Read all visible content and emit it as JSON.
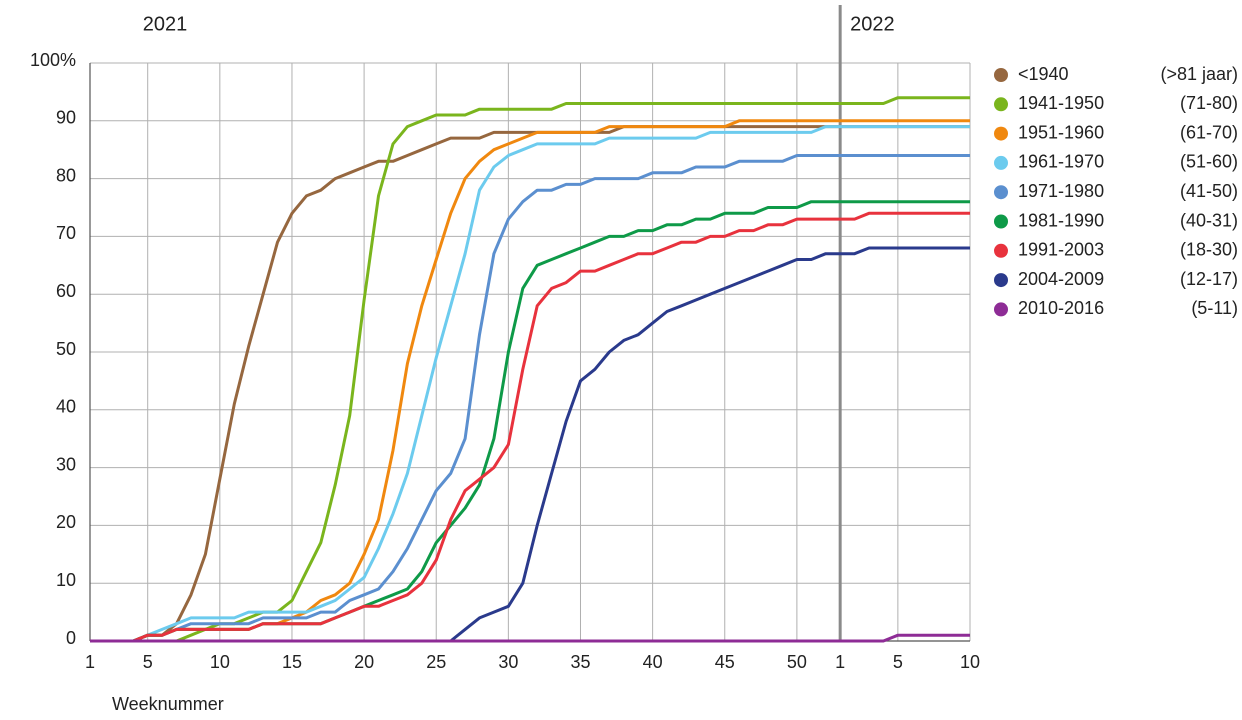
{
  "chart_data": {
    "type": "line",
    "xlabel": "Weeknummer",
    "year_labels": [
      "2021",
      "2022"
    ],
    "year_break": 53,
    "x": [
      1,
      2,
      3,
      4,
      5,
      6,
      7,
      8,
      9,
      10,
      11,
      12,
      13,
      14,
      15,
      16,
      17,
      18,
      19,
      20,
      21,
      22,
      23,
      24,
      25,
      26,
      27,
      28,
      29,
      30,
      31,
      32,
      33,
      34,
      35,
      36,
      37,
      38,
      39,
      40,
      41,
      42,
      43,
      44,
      45,
      46,
      47,
      48,
      49,
      50,
      51,
      52,
      53,
      54,
      55,
      56,
      57,
      58,
      59,
      60,
      61,
      62
    ],
    "xlim": [
      1,
      62
    ],
    "xticks": [
      1,
      5,
      10,
      15,
      20,
      25,
      30,
      35,
      40,
      45,
      50,
      {
        "value": 53,
        "label": "1"
      },
      {
        "value": 57,
        "label": "5"
      },
      {
        "value": 62,
        "label": "10"
      }
    ],
    "ylim": [
      0,
      100
    ],
    "yticks": [
      0,
      10,
      20,
      30,
      40,
      50,
      60,
      70,
      80,
      90,
      {
        "value": 100,
        "label": "100%"
      }
    ],
    "grid": true,
    "legend": "right",
    "series": [
      {
        "name": "<1940",
        "age": "(>81 jaar)",
        "color": "#96673f",
        "values": [
          0,
          0,
          0,
          0,
          1,
          1,
          3,
          8,
          15,
          28,
          41,
          51,
          60,
          69,
          74,
          77,
          78,
          80,
          81,
          82,
          83,
          83,
          84,
          85,
          86,
          87,
          87,
          87,
          88,
          88,
          88,
          88,
          88,
          88,
          88,
          88,
          88,
          89,
          89,
          89,
          89,
          89,
          89,
          89,
          89,
          89,
          89,
          89,
          89,
          89,
          89,
          89,
          89,
          89,
          89,
          89,
          89,
          89,
          89,
          89,
          89,
          89
        ]
      },
      {
        "name": "1941-1950",
        "age": "(71-80)",
        "color": "#7ab51d",
        "values": [
          0,
          0,
          0,
          0,
          0,
          0,
          0,
          1,
          2,
          3,
          3,
          4,
          5,
          5,
          7,
          12,
          17,
          27,
          39,
          59,
          77,
          86,
          89,
          90,
          91,
          91,
          91,
          92,
          92,
          92,
          92,
          92,
          92,
          93,
          93,
          93,
          93,
          93,
          93,
          93,
          93,
          93,
          93,
          93,
          93,
          93,
          93,
          93,
          93,
          93,
          93,
          93,
          93,
          93,
          93,
          93,
          94,
          94,
          94,
          94,
          94,
          94
        ]
      },
      {
        "name": "1951-1960",
        "age": "(61-70)",
        "color": "#f0880f",
        "values": [
          0,
          0,
          0,
          0,
          1,
          1,
          2,
          2,
          2,
          2,
          2,
          2,
          3,
          3,
          4,
          5,
          7,
          8,
          10,
          15,
          21,
          33,
          48,
          58,
          66,
          74,
          80,
          83,
          85,
          86,
          87,
          88,
          88,
          88,
          88,
          88,
          89,
          89,
          89,
          89,
          89,
          89,
          89,
          89,
          89,
          90,
          90,
          90,
          90,
          90,
          90,
          90,
          90,
          90,
          90,
          90,
          90,
          90,
          90,
          90,
          90,
          90
        ]
      },
      {
        "name": "1961-1970",
        "age": "(51-60)",
        "color": "#6ccbee",
        "values": [
          0,
          0,
          0,
          0,
          1,
          2,
          3,
          4,
          4,
          4,
          4,
          5,
          5,
          5,
          5,
          5,
          6,
          7,
          9,
          11,
          16,
          22,
          29,
          39,
          49,
          58,
          67,
          78,
          82,
          84,
          85,
          86,
          86,
          86,
          86,
          86,
          87,
          87,
          87,
          87,
          87,
          87,
          87,
          88,
          88,
          88,
          88,
          88,
          88,
          88,
          88,
          89,
          89,
          89,
          89,
          89,
          89,
          89,
          89,
          89,
          89,
          89
        ]
      },
      {
        "name": "1971-1980",
        "age": "(41-50)",
        "color": "#5b8fcf",
        "values": [
          0,
          0,
          0,
          0,
          1,
          1,
          2,
          3,
          3,
          3,
          3,
          3,
          4,
          4,
          4,
          4,
          5,
          5,
          7,
          8,
          9,
          12,
          16,
          21,
          26,
          29,
          35,
          53,
          67,
          73,
          76,
          78,
          78,
          79,
          79,
          80,
          80,
          80,
          80,
          81,
          81,
          81,
          82,
          82,
          82,
          83,
          83,
          83,
          83,
          84,
          84,
          84,
          84,
          84,
          84,
          84,
          84,
          84,
          84,
          84,
          84,
          84
        ]
      },
      {
        "name": "1981-1990",
        "age": "(40-31)",
        "color": "#0e9a48",
        "values": [
          0,
          0,
          0,
          0,
          1,
          1,
          2,
          2,
          2,
          2,
          2,
          2,
          3,
          3,
          3,
          3,
          3,
          4,
          5,
          6,
          7,
          8,
          9,
          12,
          17,
          20,
          23,
          27,
          35,
          50,
          61,
          65,
          66,
          67,
          68,
          69,
          70,
          70,
          71,
          71,
          72,
          72,
          73,
          73,
          74,
          74,
          74,
          75,
          75,
          75,
          76,
          76,
          76,
          76,
          76,
          76,
          76,
          76,
          76,
          76,
          76,
          76
        ]
      },
      {
        "name": "1991-2003",
        "age": "(18-30)",
        "color": "#e8323d",
        "values": [
          0,
          0,
          0,
          0,
          1,
          1,
          2,
          2,
          2,
          2,
          2,
          2,
          3,
          3,
          3,
          3,
          3,
          4,
          5,
          6,
          6,
          7,
          8,
          10,
          14,
          21,
          26,
          28,
          30,
          34,
          47,
          58,
          61,
          62,
          64,
          64,
          65,
          66,
          67,
          67,
          68,
          69,
          69,
          70,
          70,
          71,
          71,
          72,
          72,
          73,
          73,
          73,
          73,
          73,
          74,
          74,
          74,
          74,
          74,
          74,
          74,
          74
        ]
      },
      {
        "name": "2004-2009",
        "age": "(12-17)",
        "color": "#2a3a8c",
        "values": [
          0,
          0,
          0,
          0,
          0,
          0,
          0,
          0,
          0,
          0,
          0,
          0,
          0,
          0,
          0,
          0,
          0,
          0,
          0,
          0,
          0,
          0,
          0,
          0,
          0,
          0,
          2,
          4,
          5,
          6,
          10,
          20,
          29,
          38,
          45,
          47,
          50,
          52,
          53,
          55,
          57,
          58,
          59,
          60,
          61,
          62,
          63,
          64,
          65,
          66,
          66,
          67,
          67,
          67,
          68,
          68,
          68,
          68,
          68,
          68,
          68,
          68
        ]
      },
      {
        "name": "2010-2016",
        "age": "(5-11)",
        "color": "#8e2c96",
        "values": [
          0,
          0,
          0,
          0,
          0,
          0,
          0,
          0,
          0,
          0,
          0,
          0,
          0,
          0,
          0,
          0,
          0,
          0,
          0,
          0,
          0,
          0,
          0,
          0,
          0,
          0,
          0,
          0,
          0,
          0,
          0,
          0,
          0,
          0,
          0,
          0,
          0,
          0,
          0,
          0,
          0,
          0,
          0,
          0,
          0,
          0,
          0,
          0,
          0,
          0,
          0,
          0,
          0,
          0,
          0,
          0,
          1,
          1,
          1,
          1,
          1,
          1
        ]
      }
    ]
  }
}
